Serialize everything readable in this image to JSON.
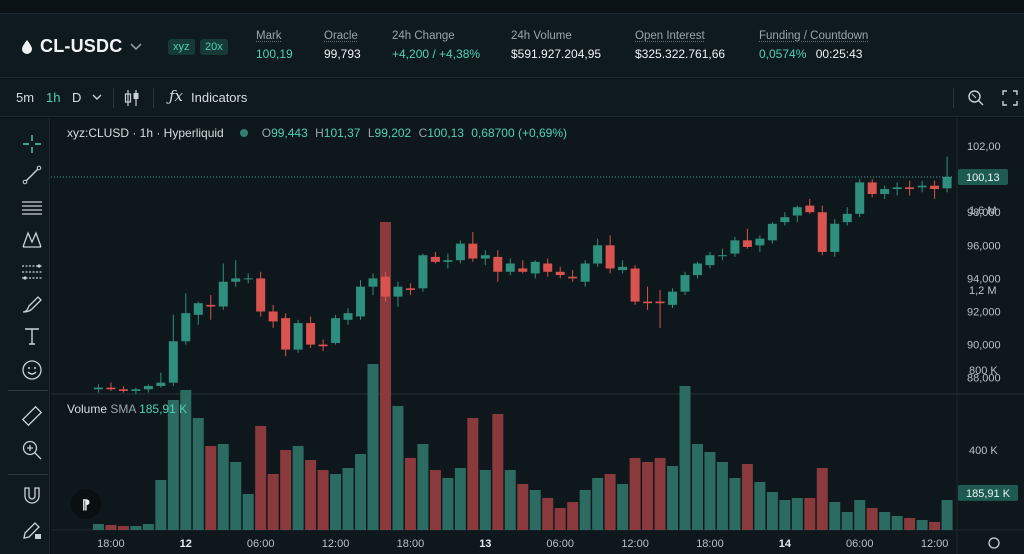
{
  "market": {
    "symbol": "CL-USDC",
    "dex_badge": "xyz",
    "leverage_badge": "20x"
  },
  "stats": [
    {
      "label": "Mark",
      "value": "100,19",
      "color": "#4fd1b8"
    },
    {
      "label": "Oracle",
      "value": "99,793",
      "color": "#eef2f3"
    },
    {
      "label": "24h Change",
      "value": "+4,200 / +4,38%",
      "color": "#4fd1b8"
    },
    {
      "label": "24h Volume",
      "value": "$591.927.204,95",
      "color": "#eef2f3"
    },
    {
      "label": "Open Interest",
      "value": "$325.322.761,66",
      "color": "#eef2f3"
    },
    {
      "label": "Funding / Countdown",
      "value": "0,0574%",
      "value2": "00:25:43",
      "color": "#4fd1b8"
    }
  ],
  "toolbar": {
    "intervals": [
      "5m",
      "1h",
      "D"
    ],
    "active_interval": "1h",
    "indicators_label": "Indicators"
  },
  "legend": {
    "title": "xyz:CLUSD · 1h · Hyperliquid",
    "o_label": "O",
    "o": "99,443",
    "h_label": "H",
    "h": "101,37",
    "l_label": "L",
    "l": "99,202",
    "c_label": "C",
    "c": "100,13",
    "change": "0,68700 (+0,69%)"
  },
  "volume_legend": {
    "label": "Volume",
    "sma_label": "SMA",
    "sma_value": "185,91 K"
  },
  "colors": {
    "up": "#2f8f7e",
    "down": "#d9534f",
    "up_vol": "#2b6b61",
    "down_vol": "#8a3a3d",
    "accent": "#4fd1b8"
  },
  "chart_data": {
    "type": "candlestick",
    "price_axis_ticks": [
      "102,00",
      "100,00",
      "98,000",
      "96,000",
      "94,000",
      "92,000",
      "90,000",
      "88,000"
    ],
    "price_tick_values": [
      102,
      100,
      98,
      96,
      94,
      92,
      90,
      88
    ],
    "last_price_label": "100,13",
    "last_price": 100.13,
    "volume_axis_ticks": [
      "1,6 M",
      "1,2 M",
      "800 K",
      "400 K"
    ],
    "volume_tick_values": [
      1600,
      1200,
      800,
      400
    ],
    "volume_last_label": "185,91 K",
    "volume_sma_value": 185.91,
    "x_tick_labels": [
      "18:00",
      "12",
      "06:00",
      "12:00",
      "18:00",
      "13",
      "06:00",
      "12:00",
      "18:00",
      "14",
      "06:00",
      "12:00"
    ],
    "x_tick_bold": [
      false,
      true,
      false,
      false,
      false,
      true,
      false,
      false,
      false,
      true,
      false,
      false
    ],
    "x_tick_hours": [
      18,
      24,
      30,
      36,
      42,
      48,
      54,
      60,
      66,
      72,
      78,
      84
    ],
    "candles": [
      {
        "t": 17,
        "o": 87.3,
        "h": 87.6,
        "l": 87.1,
        "c": 87.4,
        "v": 30
      },
      {
        "t": 18,
        "o": 87.4,
        "h": 87.7,
        "l": 87.2,
        "c": 87.3,
        "v": 25
      },
      {
        "t": 19,
        "o": 87.3,
        "h": 87.5,
        "l": 87.1,
        "c": 87.2,
        "v": 20
      },
      {
        "t": 20,
        "o": 87.2,
        "h": 87.4,
        "l": 87.0,
        "c": 87.3,
        "v": 20
      },
      {
        "t": 21,
        "o": 87.3,
        "h": 87.6,
        "l": 87.1,
        "c": 87.5,
        "v": 30
      },
      {
        "t": 22,
        "o": 87.5,
        "h": 88.3,
        "l": 87.4,
        "c": 87.7,
        "v": 250
      },
      {
        "t": 23,
        "o": 87.7,
        "h": 91.8,
        "l": 87.5,
        "c": 90.2,
        "v": 650
      },
      {
        "t": 24,
        "o": 90.2,
        "h": 93.1,
        "l": 90.0,
        "c": 91.9,
        "v": 700
      },
      {
        "t": 25,
        "o": 91.8,
        "h": 92.6,
        "l": 91.2,
        "c": 92.5,
        "v": 560
      },
      {
        "t": 26,
        "o": 92.4,
        "h": 93.0,
        "l": 91.5,
        "c": 92.3,
        "v": 420
      },
      {
        "t": 27,
        "o": 92.3,
        "h": 94.9,
        "l": 92.1,
        "c": 93.8,
        "v": 430
      },
      {
        "t": 28,
        "o": 93.8,
        "h": 95.1,
        "l": 93.5,
        "c": 94.0,
        "v": 340
      },
      {
        "t": 29,
        "o": 94.0,
        "h": 94.3,
        "l": 93.7,
        "c": 94.0,
        "v": 180
      },
      {
        "t": 30,
        "o": 94.0,
        "h": 94.4,
        "l": 91.7,
        "c": 92.0,
        "v": 520
      },
      {
        "t": 31,
        "o": 92.0,
        "h": 92.4,
        "l": 91.0,
        "c": 91.4,
        "v": 280
      },
      {
        "t": 32,
        "o": 91.6,
        "h": 91.9,
        "l": 89.3,
        "c": 89.7,
        "v": 400
      },
      {
        "t": 33,
        "o": 89.7,
        "h": 91.5,
        "l": 89.5,
        "c": 91.3,
        "v": 420
      },
      {
        "t": 34,
        "o": 91.3,
        "h": 91.7,
        "l": 89.8,
        "c": 90.0,
        "v": 350
      },
      {
        "t": 35,
        "o": 90.0,
        "h": 90.3,
        "l": 89.6,
        "c": 89.9,
        "v": 300
      },
      {
        "t": 36,
        "o": 90.1,
        "h": 91.8,
        "l": 90.0,
        "c": 91.6,
        "v": 280
      },
      {
        "t": 37,
        "o": 91.5,
        "h": 92.2,
        "l": 91.2,
        "c": 91.9,
        "v": 310
      },
      {
        "t": 38,
        "o": 91.7,
        "h": 93.9,
        "l": 91.5,
        "c": 93.5,
        "v": 380
      },
      {
        "t": 39,
        "o": 93.5,
        "h": 94.3,
        "l": 93.0,
        "c": 94.0,
        "v": 830
      },
      {
        "t": 40,
        "o": 94.1,
        "h": 94.4,
        "l": 92.6,
        "c": 92.9,
        "v": 1540
      },
      {
        "t": 41,
        "o": 92.9,
        "h": 93.8,
        "l": 92.3,
        "c": 93.5,
        "v": 620
      },
      {
        "t": 42,
        "o": 93.4,
        "h": 93.7,
        "l": 93.0,
        "c": 93.3,
        "v": 360
      },
      {
        "t": 43,
        "o": 93.4,
        "h": 95.5,
        "l": 93.2,
        "c": 95.4,
        "v": 430
      },
      {
        "t": 44,
        "o": 95.3,
        "h": 95.6,
        "l": 94.9,
        "c": 95.0,
        "v": 300
      },
      {
        "t": 45,
        "o": 95.0,
        "h": 95.5,
        "l": 94.6,
        "c": 95.1,
        "v": 260
      },
      {
        "t": 46,
        "o": 95.1,
        "h": 96.3,
        "l": 94.9,
        "c": 96.1,
        "v": 310
      },
      {
        "t": 47,
        "o": 96.1,
        "h": 96.8,
        "l": 95.0,
        "c": 95.2,
        "v": 560
      },
      {
        "t": 48,
        "o": 95.2,
        "h": 95.7,
        "l": 94.8,
        "c": 95.4,
        "v": 300
      },
      {
        "t": 49,
        "o": 95.3,
        "h": 95.7,
        "l": 93.8,
        "c": 94.4,
        "v": 580
      },
      {
        "t": 50,
        "o": 94.4,
        "h": 95.2,
        "l": 94.2,
        "c": 94.9,
        "v": 300
      },
      {
        "t": 51,
        "o": 94.6,
        "h": 95.1,
        "l": 94.3,
        "c": 94.4,
        "v": 230
      },
      {
        "t": 52,
        "o": 94.3,
        "h": 95.1,
        "l": 94.0,
        "c": 95.0,
        "v": 200
      },
      {
        "t": 53,
        "o": 94.9,
        "h": 95.2,
        "l": 94.1,
        "c": 94.4,
        "v": 160
      },
      {
        "t": 54,
        "o": 94.4,
        "h": 94.7,
        "l": 94.0,
        "c": 94.2,
        "v": 110
      },
      {
        "t": 55,
        "o": 94.1,
        "h": 94.5,
        "l": 93.8,
        "c": 94.0,
        "v": 140
      },
      {
        "t": 56,
        "o": 93.8,
        "h": 95.1,
        "l": 93.5,
        "c": 94.9,
        "v": 200
      },
      {
        "t": 57,
        "o": 94.9,
        "h": 96.4,
        "l": 94.7,
        "c": 96.0,
        "v": 260
      },
      {
        "t": 58,
        "o": 96.0,
        "h": 96.6,
        "l": 94.3,
        "c": 94.6,
        "v": 280
      },
      {
        "t": 59,
        "o": 94.5,
        "h": 95.1,
        "l": 94.3,
        "c": 94.7,
        "v": 230
      },
      {
        "t": 60,
        "o": 94.6,
        "h": 94.8,
        "l": 92.4,
        "c": 92.6,
        "v": 360
      },
      {
        "t": 61,
        "o": 92.6,
        "h": 93.5,
        "l": 92.1,
        "c": 92.5,
        "v": 340
      },
      {
        "t": 62,
        "o": 92.6,
        "h": 93.3,
        "l": 91.0,
        "c": 92.5,
        "v": 360
      },
      {
        "t": 63,
        "o": 92.4,
        "h": 93.4,
        "l": 92.2,
        "c": 93.2,
        "v": 320
      },
      {
        "t": 64,
        "o": 93.2,
        "h": 94.4,
        "l": 93.0,
        "c": 94.2,
        "v": 720
      },
      {
        "t": 65,
        "o": 94.2,
        "h": 95.0,
        "l": 94.0,
        "c": 94.9,
        "v": 430
      },
      {
        "t": 66,
        "o": 94.8,
        "h": 95.6,
        "l": 94.6,
        "c": 95.4,
        "v": 390
      },
      {
        "t": 67,
        "o": 95.4,
        "h": 95.8,
        "l": 95.1,
        "c": 95.4,
        "v": 340
      },
      {
        "t": 68,
        "o": 95.5,
        "h": 96.5,
        "l": 95.3,
        "c": 96.3,
        "v": 260
      },
      {
        "t": 69,
        "o": 96.3,
        "h": 97.0,
        "l": 95.8,
        "c": 95.9,
        "v": 330
      },
      {
        "t": 70,
        "o": 96.0,
        "h": 96.6,
        "l": 95.6,
        "c": 96.4,
        "v": 240
      },
      {
        "t": 71,
        "o": 96.3,
        "h": 97.4,
        "l": 96.1,
        "c": 97.3,
        "v": 190
      },
      {
        "t": 72,
        "o": 97.4,
        "h": 98.0,
        "l": 97.2,
        "c": 97.7,
        "v": 150
      },
      {
        "t": 73,
        "o": 97.8,
        "h": 98.4,
        "l": 97.4,
        "c": 98.3,
        "v": 160
      },
      {
        "t": 74,
        "o": 98.4,
        "h": 98.8,
        "l": 97.9,
        "c": 98.0,
        "v": 160
      },
      {
        "t": 75,
        "o": 98.0,
        "h": 98.4,
        "l": 95.4,
        "c": 95.6,
        "v": 310
      },
      {
        "t": 76,
        "o": 95.6,
        "h": 97.6,
        "l": 95.3,
        "c": 97.3,
        "v": 140
      },
      {
        "t": 77,
        "o": 97.4,
        "h": 98.3,
        "l": 97.2,
        "c": 97.9,
        "v": 90
      },
      {
        "t": 78,
        "o": 97.9,
        "h": 100.0,
        "l": 97.7,
        "c": 99.8,
        "v": 150
      },
      {
        "t": 79,
        "o": 99.8,
        "h": 100.0,
        "l": 98.9,
        "c": 99.1,
        "v": 110
      },
      {
        "t": 80,
        "o": 99.1,
        "h": 99.6,
        "l": 98.8,
        "c": 99.4,
        "v": 90
      },
      {
        "t": 81,
        "o": 99.4,
        "h": 99.8,
        "l": 99.0,
        "c": 99.5,
        "v": 70
      },
      {
        "t": 82,
        "o": 99.5,
        "h": 99.9,
        "l": 99.0,
        "c": 99.4,
        "v": 60
      },
      {
        "t": 83,
        "o": 99.5,
        "h": 99.9,
        "l": 99.2,
        "c": 99.6,
        "v": 50
      },
      {
        "t": 84,
        "o": 99.6,
        "h": 99.9,
        "l": 98.8,
        "c": 99.4,
        "v": 40
      },
      {
        "t": 85,
        "o": 99.443,
        "h": 101.37,
        "l": 99.202,
        "c": 100.13,
        "v": 150
      }
    ]
  }
}
